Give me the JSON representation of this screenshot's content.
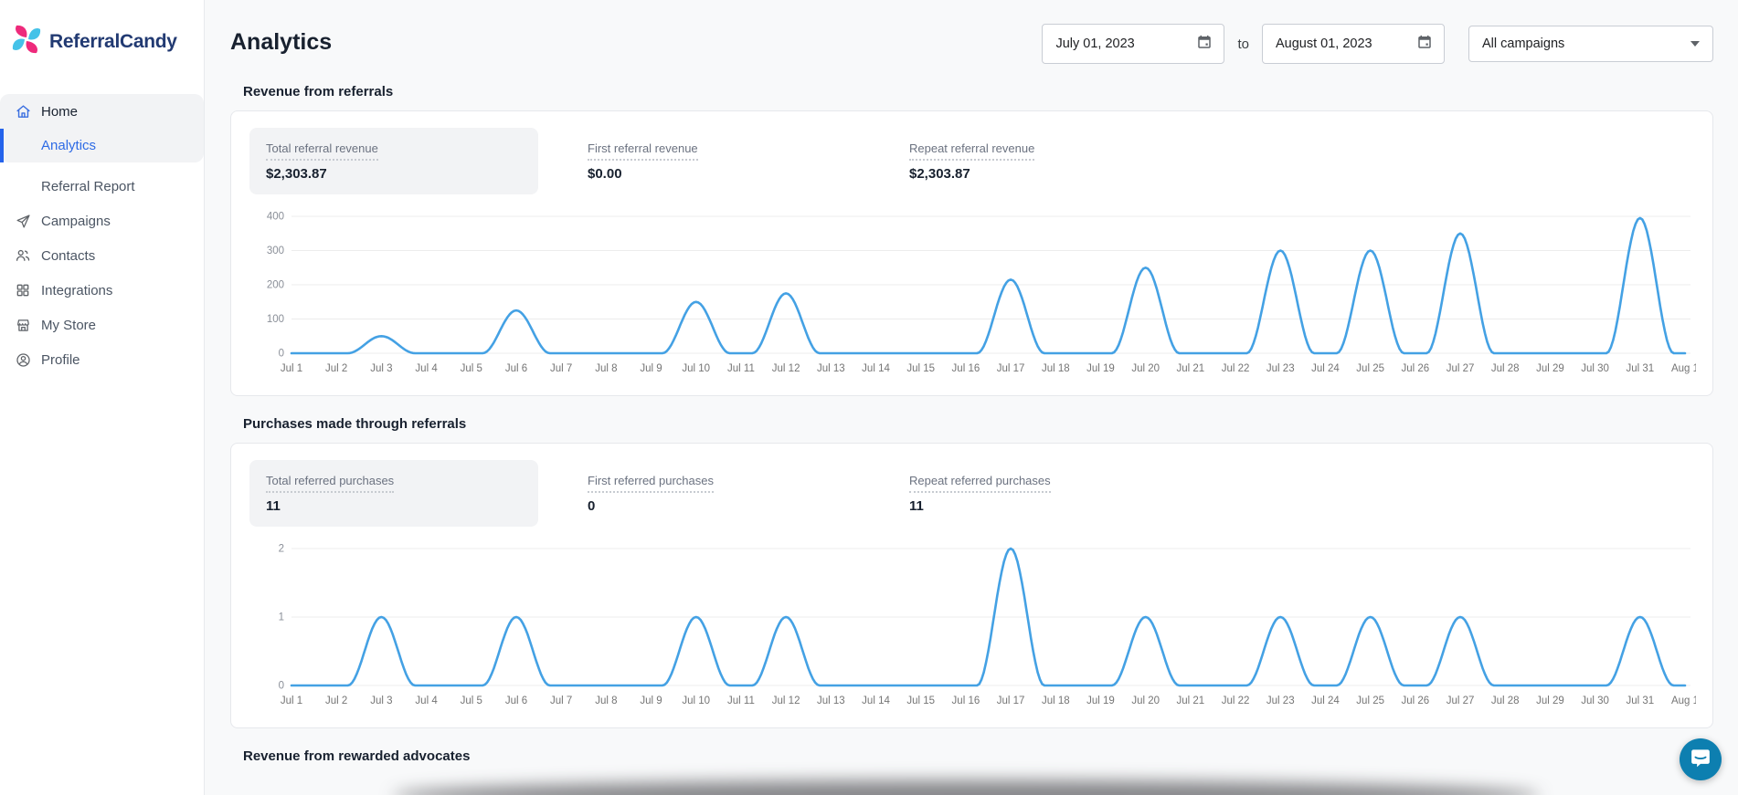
{
  "brand": {
    "name": "ReferralCandy",
    "logo_pink": "#ee2a7b",
    "logo_cyan": "#45c2e8",
    "logo_text_color": "#223a72"
  },
  "sidebar": {
    "items": [
      {
        "label": "Home",
        "icon": "home-icon",
        "active": false
      },
      {
        "label": "Analytics",
        "active": true
      },
      {
        "label": "Referral Report",
        "active": false
      },
      {
        "label": "Campaigns",
        "icon": "paper-plane-icon",
        "active": false
      },
      {
        "label": "Contacts",
        "icon": "people-icon",
        "active": false
      },
      {
        "label": "Integrations",
        "icon": "grid-icon",
        "active": false
      },
      {
        "label": "My Store",
        "icon": "store-icon",
        "active": false
      },
      {
        "label": "Profile",
        "icon": "person-icon",
        "active": false
      }
    ]
  },
  "header": {
    "title": "Analytics",
    "date_from": "July 01, 2023",
    "to_label": "to",
    "date_to": "August 01, 2023",
    "campaign_filter": "All campaigns"
  },
  "sections": [
    {
      "heading": "Revenue from referrals",
      "stats": [
        {
          "label": "Total referral revenue",
          "value": "$2,303.87"
        },
        {
          "label": "First referral revenue",
          "value": "$0.00"
        },
        {
          "label": "Repeat referral revenue",
          "value": "$2,303.87"
        }
      ]
    },
    {
      "heading": "Purchases made through referrals",
      "stats": [
        {
          "label": "Total referred purchases",
          "value": "11"
        },
        {
          "label": "First referred purchases",
          "value": "0"
        },
        {
          "label": "Repeat referred purchases",
          "value": "11"
        }
      ]
    },
    {
      "heading": "Revenue from rewarded advocates"
    }
  ],
  "chart_data": [
    {
      "type": "line",
      "title": "Revenue from referrals (daily)",
      "x": [
        "Jul 1",
        "Jul 2",
        "Jul 3",
        "Jul 4",
        "Jul 5",
        "Jul 6",
        "Jul 7",
        "Jul 8",
        "Jul 9",
        "Jul 10",
        "Jul 11",
        "Jul 12",
        "Jul 13",
        "Jul 14",
        "Jul 15",
        "Jul 16",
        "Jul 17",
        "Jul 18",
        "Jul 19",
        "Jul 20",
        "Jul 21",
        "Jul 22",
        "Jul 23",
        "Jul 24",
        "Jul 25",
        "Jul 26",
        "Jul 27",
        "Jul 28",
        "Jul 29",
        "Jul 30",
        "Jul 31",
        "Aug 1"
      ],
      "values": [
        0,
        0,
        50,
        0,
        0,
        125,
        0,
        0,
        0,
        150,
        0,
        175,
        0,
        0,
        0,
        0,
        215,
        0,
        0,
        250,
        0,
        0,
        300,
        0,
        300,
        0,
        350,
        0,
        0,
        0,
        395,
        0
      ],
      "ylim": [
        0,
        400
      ],
      "yticks": [
        0,
        100,
        200,
        300,
        400
      ],
      "line_color": "#44a1e4",
      "grid": true,
      "legend": "none"
    },
    {
      "type": "line",
      "title": "Purchases made through referrals (daily)",
      "x": [
        "Jul 1",
        "Jul 2",
        "Jul 3",
        "Jul 4",
        "Jul 5",
        "Jul 6",
        "Jul 7",
        "Jul 8",
        "Jul 9",
        "Jul 10",
        "Jul 11",
        "Jul 12",
        "Jul 13",
        "Jul 14",
        "Jul 15",
        "Jul 16",
        "Jul 17",
        "Jul 18",
        "Jul 19",
        "Jul 20",
        "Jul 21",
        "Jul 22",
        "Jul 23",
        "Jul 24",
        "Jul 25",
        "Jul 26",
        "Jul 27",
        "Jul 28",
        "Jul 29",
        "Jul 30",
        "Jul 31",
        "Aug 1"
      ],
      "values": [
        0,
        0,
        1,
        0,
        0,
        1,
        0,
        0,
        0,
        1,
        0,
        1,
        0,
        0,
        0,
        0,
        2,
        0,
        0,
        1,
        0,
        0,
        1,
        0,
        1,
        0,
        1,
        0,
        0,
        0,
        1,
        0
      ],
      "ylim": [
        0,
        2
      ],
      "yticks": [
        0,
        1,
        2
      ],
      "line_color": "#44a1e4",
      "grid": true,
      "legend": "none"
    }
  ],
  "chart_style": {
    "grid_color": "#ececec",
    "axis_label_color": "#8a8f98",
    "x_label_color": "#757575"
  },
  "chat": {
    "color": "#0d7fb0",
    "icon": "chat-bubble-icon"
  }
}
